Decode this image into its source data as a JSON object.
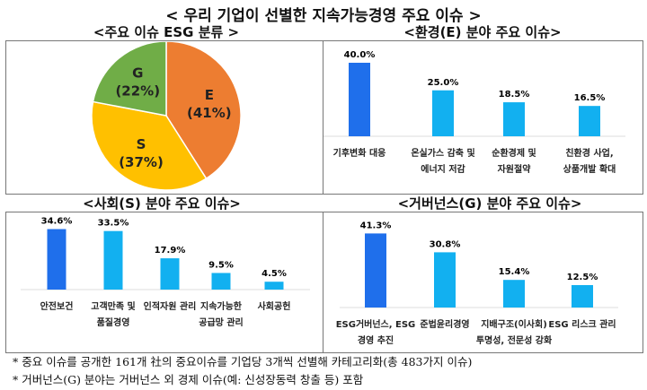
{
  "title": "< 우리 기업이 선별한 지속가능경영 주요 이슈 >",
  "chart_data": [
    {
      "type": "pie",
      "title": "<주요 이슈 ESG 분류 >",
      "slices": [
        {
          "name": "E",
          "label": "(41%)",
          "value": 41,
          "color": "#ED7D31"
        },
        {
          "name": "S",
          "label": "(37%)",
          "value": 37,
          "color": "#FFC000"
        },
        {
          "name": "G",
          "label": "(22%)",
          "value": 22,
          "color": "#70AD47"
        }
      ]
    },
    {
      "type": "bar",
      "title": "<환경(E) 분야 주요 이슈>",
      "categories": [
        [
          "기후변화 대응"
        ],
        [
          "온실가스 감축 및",
          "에너지 저감"
        ],
        [
          "순환경제 및",
          "자원절약"
        ],
        [
          "친환경 사업,",
          "상품개발 확대"
        ]
      ],
      "values": [
        40.0,
        25.0,
        18.5,
        16.5
      ],
      "labels": [
        "40.0%",
        "25.0%",
        "18.5%",
        "16.5%"
      ],
      "colors": [
        "#1F6FEB",
        "#12B0F0",
        "#12B0F0",
        "#12B0F0"
      ]
    },
    {
      "type": "bar",
      "title": "<사회(S) 분야 주요 이슈>",
      "categories": [
        [
          "안전보건"
        ],
        [
          "고객만족 및",
          "품질경영"
        ],
        [
          "인적자원 관리"
        ],
        [
          "지속가능한",
          "공급망 관리"
        ],
        [
          "사회공헌"
        ]
      ],
      "values": [
        34.6,
        33.5,
        17.9,
        9.5,
        4.5
      ],
      "labels": [
        "34.6%",
        "33.5%",
        "17.9%",
        "9.5%",
        "4.5%"
      ],
      "colors": [
        "#1F6FEB",
        "#12B0F0",
        "#12B0F0",
        "#12B0F0",
        "#12B0F0"
      ]
    },
    {
      "type": "bar",
      "title": "<거버넌스(G) 분야 주요 이슈>",
      "categories": [
        [
          "ESG거버넌스, ESG",
          "경영 추진"
        ],
        [
          "준법윤리경영"
        ],
        [
          "지배구조(이사회)",
          "투명성, 전문성 강화"
        ],
        [
          "ESG 리스크 관리"
        ]
      ],
      "values": [
        41.3,
        30.8,
        15.4,
        12.5
      ],
      "labels": [
        "41.3%",
        "30.8%",
        "15.4%",
        "12.5%"
      ],
      "colors": [
        "#1F6FEB",
        "#12B0F0",
        "#12B0F0",
        "#12B0F0"
      ]
    }
  ],
  "notes": [
    "* 중요 이슈를 공개한 161개 社의 중요이슈를 기업당 3개씩 선별해 카테고리화(총 483가지 이슈)",
    "* 거버넌스(G) 분야는 거버넌스 외 경제 이슈(예: 신성장동력 창출 등) 포함"
  ]
}
